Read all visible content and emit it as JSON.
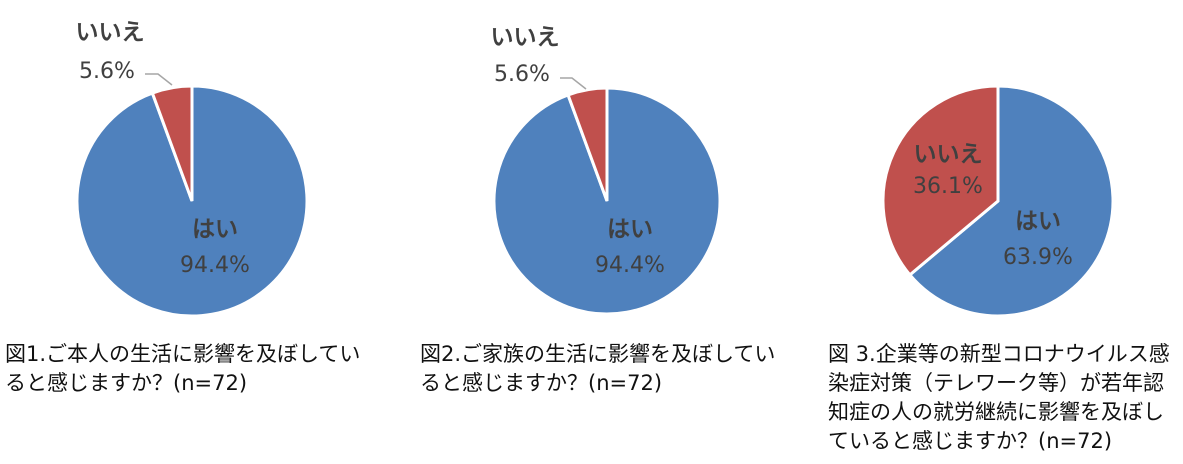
{
  "chart_data": [
    {
      "type": "pie",
      "title": "図1.ご本人の生活に影響を及ぼしていると感じますか？(n=72)",
      "categories": [
        "はい",
        "いいえ"
      ],
      "values": [
        94.4,
        5.6
      ],
      "value_labels": [
        "94.4%",
        "5.6%"
      ],
      "colors": [
        "#4f81bd",
        "#c0504d"
      ]
    },
    {
      "type": "pie",
      "title": "図2.ご家族の生活に影響を及ぼしていると感じますか？(n=72)",
      "categories": [
        "はい",
        "いいえ"
      ],
      "values": [
        94.4,
        5.6
      ],
      "value_labels": [
        "94.4%",
        "5.6%"
      ],
      "colors": [
        "#4f81bd",
        "#c0504d"
      ]
    },
    {
      "type": "pie",
      "title": "図 3.企業等の新型コロナウイルス感染症対策（テレワーク等）が若年認知症の人の就労継続に影響を及ぼしていると感じますか？(n=72)",
      "categories": [
        "はい",
        "いいえ"
      ],
      "values": [
        63.9,
        36.1
      ],
      "value_labels": [
        "63.9%",
        "36.1%"
      ],
      "colors": [
        "#4f81bd",
        "#c0504d"
      ]
    }
  ]
}
